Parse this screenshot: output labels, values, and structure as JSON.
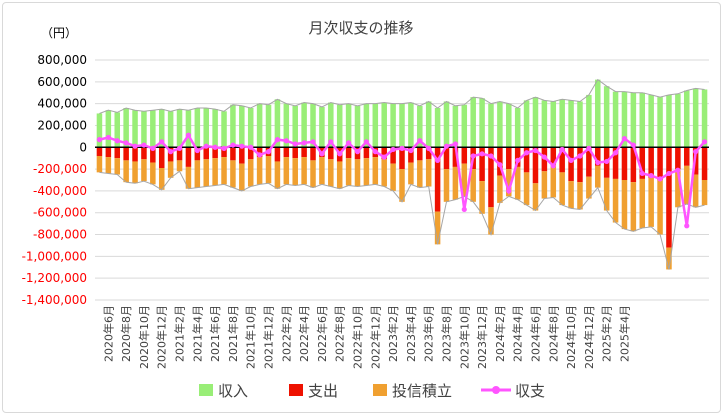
{
  "chart_data": {
    "type": "bar",
    "title": "月次収支の推移",
    "unit_label": "（円）",
    "ylim": [
      -1400000,
      800000
    ],
    "yticks": [
      800000,
      600000,
      400000,
      200000,
      0,
      -200000,
      -400000,
      -600000,
      -800000,
      -1000000,
      -1200000,
      -1400000
    ],
    "ytick_labels": [
      "800,000",
      "600,000",
      "400,000",
      "200,000",
      "0",
      "-200,000",
      "-400,000",
      "-600,000",
      "-800,000",
      "-1,000,000",
      "-1,200,000",
      "-1,400,000"
    ],
    "ytick_colors": [
      "#000000",
      "#000000",
      "#000000",
      "#000000",
      "#000000",
      "#ff0000",
      "#ff0000",
      "#ff0000",
      "#ff0000",
      "#ff0000",
      "#ff0000",
      "#ff0000"
    ],
    "x_tick_labels": [
      "2020年6月",
      "2020年8月",
      "2020年10月",
      "2020年12月",
      "2021年2月",
      "2021年4月",
      "2021年6月",
      "2021年8月",
      "2021年10月",
      "2021年12月",
      "2022年2月",
      "2022年4月",
      "2022年6月",
      "2022年8月",
      "2022年10月",
      "2022年12月",
      "2023年2月",
      "2023年4月",
      "2023年6月",
      "2023年8月",
      "2023年10月",
      "2023年12月",
      "2024年2月",
      "2024年4月",
      "2024年6月",
      "2024年8月",
      "2024年10月",
      "2024年12月",
      "2025年2月",
      "2025年4月"
    ],
    "series": [
      {
        "name": "収入",
        "color": "#99ee77",
        "stack": "positive",
        "values": [
          310000,
          340000,
          320000,
          360000,
          340000,
          330000,
          340000,
          350000,
          330000,
          350000,
          340000,
          360000,
          360000,
          350000,
          330000,
          390000,
          380000,
          360000,
          400000,
          390000,
          440000,
          400000,
          380000,
          410000,
          400000,
          370000,
          410000,
          390000,
          400000,
          380000,
          400000,
          400000,
          410000,
          400000,
          400000,
          410000,
          380000,
          420000,
          360000,
          420000,
          380000,
          390000,
          460000,
          450000,
          400000,
          420000,
          400000,
          360000,
          430000,
          460000,
          430000,
          420000,
          440000,
          430000,
          420000,
          480000,
          620000,
          560000,
          510000,
          510000,
          500000,
          500000,
          480000,
          460000,
          480000,
          490000,
          520000,
          540000,
          530000
        ]
      },
      {
        "name": "支出",
        "color": "#ee1100",
        "stack": "negative",
        "values": [
          -80000,
          -90000,
          -100000,
          -120000,
          -130000,
          -110000,
          -140000,
          -190000,
          -130000,
          -120000,
          -180000,
          -120000,
          -110000,
          -100000,
          -90000,
          -120000,
          -150000,
          -110000,
          -90000,
          -80000,
          -130000,
          -90000,
          -100000,
          -90000,
          -120000,
          -90000,
          -110000,
          -130000,
          -100000,
          -110000,
          -100000,
          -90000,
          -110000,
          -150000,
          -200000,
          -140000,
          -120000,
          -110000,
          -590000,
          -200000,
          -180000,
          -150000,
          -200000,
          -310000,
          -550000,
          -260000,
          -200000,
          -180000,
          -230000,
          -330000,
          -220000,
          -160000,
          -230000,
          -310000,
          -320000,
          -270000,
          -170000,
          -280000,
          -290000,
          -300000,
          -320000,
          -290000,
          -280000,
          -300000,
          -920000,
          -200000,
          -170000,
          -250000,
          -300000
        ]
      },
      {
        "name": "投信積立",
        "color": "#f0a030",
        "stack": "negative",
        "values": [
          -150000,
          -150000,
          -150000,
          -200000,
          -200000,
          -200000,
          -200000,
          -200000,
          -150000,
          -100000,
          -200000,
          -250000,
          -250000,
          -250000,
          -250000,
          -250000,
          -250000,
          -250000,
          -250000,
          -250000,
          -250000,
          -250000,
          -250000,
          -250000,
          -250000,
          -250000,
          -250000,
          -250000,
          -250000,
          -250000,
          -250000,
          -250000,
          -250000,
          -250000,
          -300000,
          -200000,
          -250000,
          -250000,
          -300000,
          -300000,
          -300000,
          -300000,
          -300000,
          -300000,
          -250000,
          -250000,
          -250000,
          -300000,
          -300000,
          -250000,
          -250000,
          -300000,
          -300000,
          -250000,
          -250000,
          -200000,
          -200000,
          -300000,
          -400000,
          -450000,
          -450000,
          -450000,
          -450000,
          -500000,
          -200000,
          -350000,
          -350000,
          -300000,
          -230000
        ]
      },
      {
        "name": "収支",
        "color": "#ff55ff",
        "type": "line",
        "values": [
          70000,
          90000,
          60000,
          40000,
          10000,
          20000,
          -10000,
          50000,
          -40000,
          -10000,
          110000,
          -30000,
          10000,
          0,
          -10000,
          20000,
          10000,
          0,
          -70000,
          -40000,
          70000,
          60000,
          30000,
          40000,
          50000,
          -60000,
          50000,
          -60000,
          40000,
          -40000,
          50000,
          -40000,
          -90000,
          -20000,
          -10000,
          -30000,
          60000,
          -10000,
          -120000,
          10000,
          30000,
          -570000,
          -80000,
          -60000,
          -80000,
          -160000,
          -400000,
          -120000,
          -50000,
          -30000,
          -90000,
          -170000,
          -20000,
          -120000,
          -80000,
          -10000,
          -140000,
          -130000,
          -50000,
          80000,
          20000,
          -240000,
          -260000,
          -290000,
          -240000,
          -210000,
          -720000,
          -40000,
          50000
        ]
      }
    ]
  }
}
